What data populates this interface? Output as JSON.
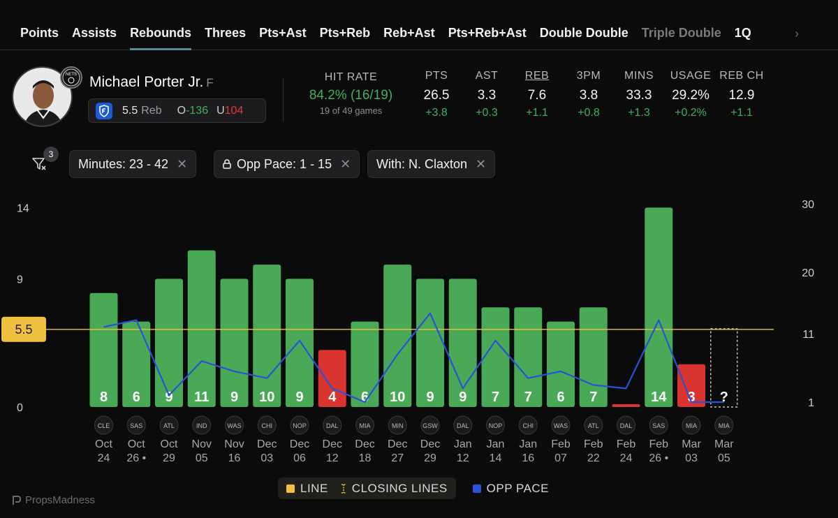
{
  "tabs": [
    {
      "label": "Points",
      "state": "normal"
    },
    {
      "label": "Assists",
      "state": "normal"
    },
    {
      "label": "Rebounds",
      "state": "active"
    },
    {
      "label": "Threes",
      "state": "normal"
    },
    {
      "label": "Pts+Ast",
      "state": "normal"
    },
    {
      "label": "Pts+Reb",
      "state": "normal"
    },
    {
      "label": "Reb+Ast",
      "state": "normal"
    },
    {
      "label": "Pts+Reb+Ast",
      "state": "normal"
    },
    {
      "label": "Double Double",
      "state": "normal"
    },
    {
      "label": "Triple Double",
      "state": "dim"
    },
    {
      "label": "1Q",
      "state": "normal"
    }
  ],
  "player": {
    "name": "Michael Porter Jr.",
    "position": "F",
    "team_badge": "NETS",
    "line_value": "5.5",
    "line_label": "Reb",
    "over_prefix": "O",
    "over_odds": "-136",
    "under_prefix": "U",
    "under_odds": "104"
  },
  "hit_rate": {
    "label": "HIT RATE",
    "value": "84.2% (16/19)",
    "sub": "19 of 49 games"
  },
  "stats": [
    {
      "label": "PTS",
      "value": "26.5",
      "delta": "+3.8",
      "underline": false
    },
    {
      "label": "AST",
      "value": "3.3",
      "delta": "+0.3",
      "underline": false
    },
    {
      "label": "REB",
      "value": "7.6",
      "delta": "+1.1",
      "underline": true
    },
    {
      "label": "3PM",
      "value": "3.8",
      "delta": "+0.8",
      "underline": false
    },
    {
      "label": "MINS",
      "value": "33.3",
      "delta": "+1.3",
      "underline": false
    },
    {
      "label": "USAGE",
      "value": "29.2%",
      "delta": "+0.2%",
      "underline": false
    },
    {
      "label": "REB CH",
      "value": "12.9",
      "delta": "+1.1",
      "underline": false
    }
  ],
  "filters": {
    "count": "3",
    "chips": [
      {
        "label": "Minutes: 23 - 42",
        "locked": false
      },
      {
        "label": "Opp Pace: 1 - 15",
        "locked": true
      },
      {
        "label": "With: N. Claxton",
        "locked": false
      }
    ]
  },
  "legend": {
    "line": "LINE",
    "closing": "CLOSING LINES",
    "pace": "OPP PACE"
  },
  "brand": "PropsMadness",
  "colors": {
    "hit": "#4aa956",
    "miss": "#d9342f",
    "line": "#f0c040",
    "pace": "#2a52d6"
  },
  "chart_data": {
    "type": "bar",
    "title": "Rebounds",
    "line": 5.5,
    "line_label": "5.5",
    "ylim_left": [
      0,
      14
    ],
    "left_ticks": [
      "14",
      "9",
      "0"
    ],
    "left_tick_values": [
      14,
      9,
      0
    ],
    "ylim_right": [
      1,
      30
    ],
    "right_ticks": [
      "30",
      "20",
      "11",
      "1"
    ],
    "right_tick_values": [
      30,
      20,
      11,
      1
    ],
    "games": [
      {
        "d1": "Oct",
        "d2": "24",
        "team": "CLE",
        "value": 8,
        "label": "8",
        "pace": 12
      },
      {
        "d1": "Oct",
        "d2": "26 •",
        "team": "SAS",
        "value": 6,
        "label": "6",
        "pace": 13
      },
      {
        "d1": "Oct",
        "d2": "29",
        "team": "ATL",
        "value": 9,
        "label": "9",
        "pace": 2
      },
      {
        "d1": "Nov",
        "d2": "05",
        "team": "IND",
        "value": 11,
        "label": "11",
        "pace": 7
      },
      {
        "d1": "Nov",
        "d2": "16",
        "team": "WAS",
        "value": 9,
        "label": "9",
        "pace": 5.5
      },
      {
        "d1": "Dec",
        "d2": "03",
        "team": "CHI",
        "value": 10,
        "label": "10",
        "pace": 4.5
      },
      {
        "d1": "Dec",
        "d2": "06",
        "team": "NOP",
        "value": 9,
        "label": "9",
        "pace": 10
      },
      {
        "d1": "Dec",
        "d2": "12",
        "team": "DAL",
        "value": 4,
        "label": "4",
        "pace": 3
      },
      {
        "d1": "Dec",
        "d2": "18",
        "team": "MIA",
        "value": 6,
        "label": "6",
        "pace": 1
      },
      {
        "d1": "Dec",
        "d2": "27",
        "team": "MIN",
        "value": 10,
        "label": "10",
        "pace": 8
      },
      {
        "d1": "Dec",
        "d2": "29",
        "team": "GSW",
        "value": 9,
        "label": "9",
        "pace": 14
      },
      {
        "d1": "Jan",
        "d2": "12",
        "team": "DAL",
        "value": 9,
        "label": "9",
        "pace": 3
      },
      {
        "d1": "Jan",
        "d2": "14",
        "team": "NOP",
        "value": 7,
        "label": "7",
        "pace": 10
      },
      {
        "d1": "Jan",
        "d2": "16",
        "team": "CHI",
        "value": 7,
        "label": "7",
        "pace": 4.5
      },
      {
        "d1": "Feb",
        "d2": "07",
        "team": "WAS",
        "value": 6,
        "label": "6",
        "pace": 5.5
      },
      {
        "d1": "Feb",
        "d2": "22",
        "team": "ATL",
        "value": 7,
        "label": "7",
        "pace": 3.5
      },
      {
        "d1": "Feb",
        "d2": "24",
        "team": "DAL",
        "value": 0,
        "label": "",
        "pace": 3
      },
      {
        "d1": "Feb",
        "d2": "26 •",
        "team": "SAS",
        "value": 14,
        "label": "14",
        "pace": 13
      },
      {
        "d1": "Mar",
        "d2": "03",
        "team": "MIA",
        "value": 3,
        "label": "3",
        "pace": 1
      },
      {
        "d1": "Mar",
        "d2": "05",
        "team": "MIA",
        "value": null,
        "label": "?",
        "pace": 1
      }
    ]
  }
}
